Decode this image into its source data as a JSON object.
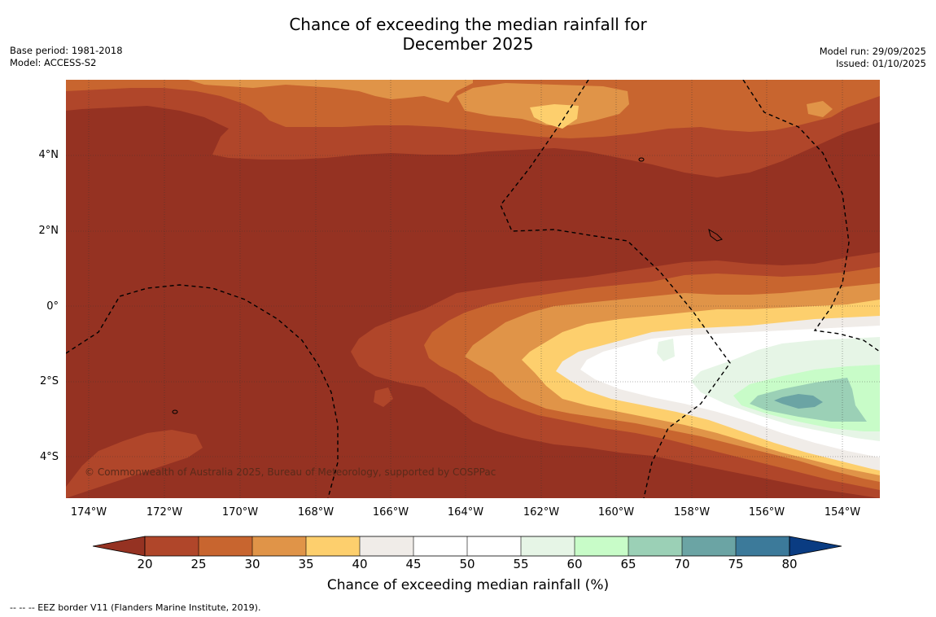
{
  "title_line1": "Chance of exceeding the median rainfall for",
  "title_line2": "December 2025",
  "meta_left": {
    "base_period": "Base period: 1981-2018",
    "model": "Model: ACCESS-S2"
  },
  "meta_right": {
    "model_run": "Model run: 29/09/2025",
    "issued": "Issued: 01/10/2025"
  },
  "copyright": "© Commonwealth of Australia 2025, Bureau of Meteorology, supported by COSPPac",
  "lat_labels": [
    "4°N",
    "2°N",
    "0°",
    "2°S",
    "4°S"
  ],
  "lon_labels": [
    "174°W",
    "172°W",
    "170°W",
    "168°W",
    "166°W",
    "164°W",
    "162°W",
    "160°W",
    "158°W",
    "156°W",
    "154°W"
  ],
  "colorbar": {
    "ticks": [
      "20",
      "25",
      "30",
      "35",
      "40",
      "45",
      "50",
      "55",
      "60",
      "65",
      "70",
      "75",
      "80"
    ],
    "colors": {
      "lt20": "#953222",
      "c20_25": "#b0462a",
      "c25_30": "#c8652f",
      "c30_35": "#e09448",
      "c35_40": "#fdcf6d",
      "c40_45": "#f0ece8",
      "c45_50": "#ffffff",
      "c50_55": "#ffffff",
      "c55_60": "#e6f5e6",
      "c60_65": "#c8fcc8",
      "c65_70": "#9bd0b6",
      "c70_75": "#6ba4a4",
      "c75_80": "#3c7a9a",
      "gt80": "#0a3c82"
    },
    "label": "Chance of exceeding median rainfall (%)"
  },
  "legend_note": "-- -- -- EEZ border V11 (Flanders Marine Institute, 2019)."
}
